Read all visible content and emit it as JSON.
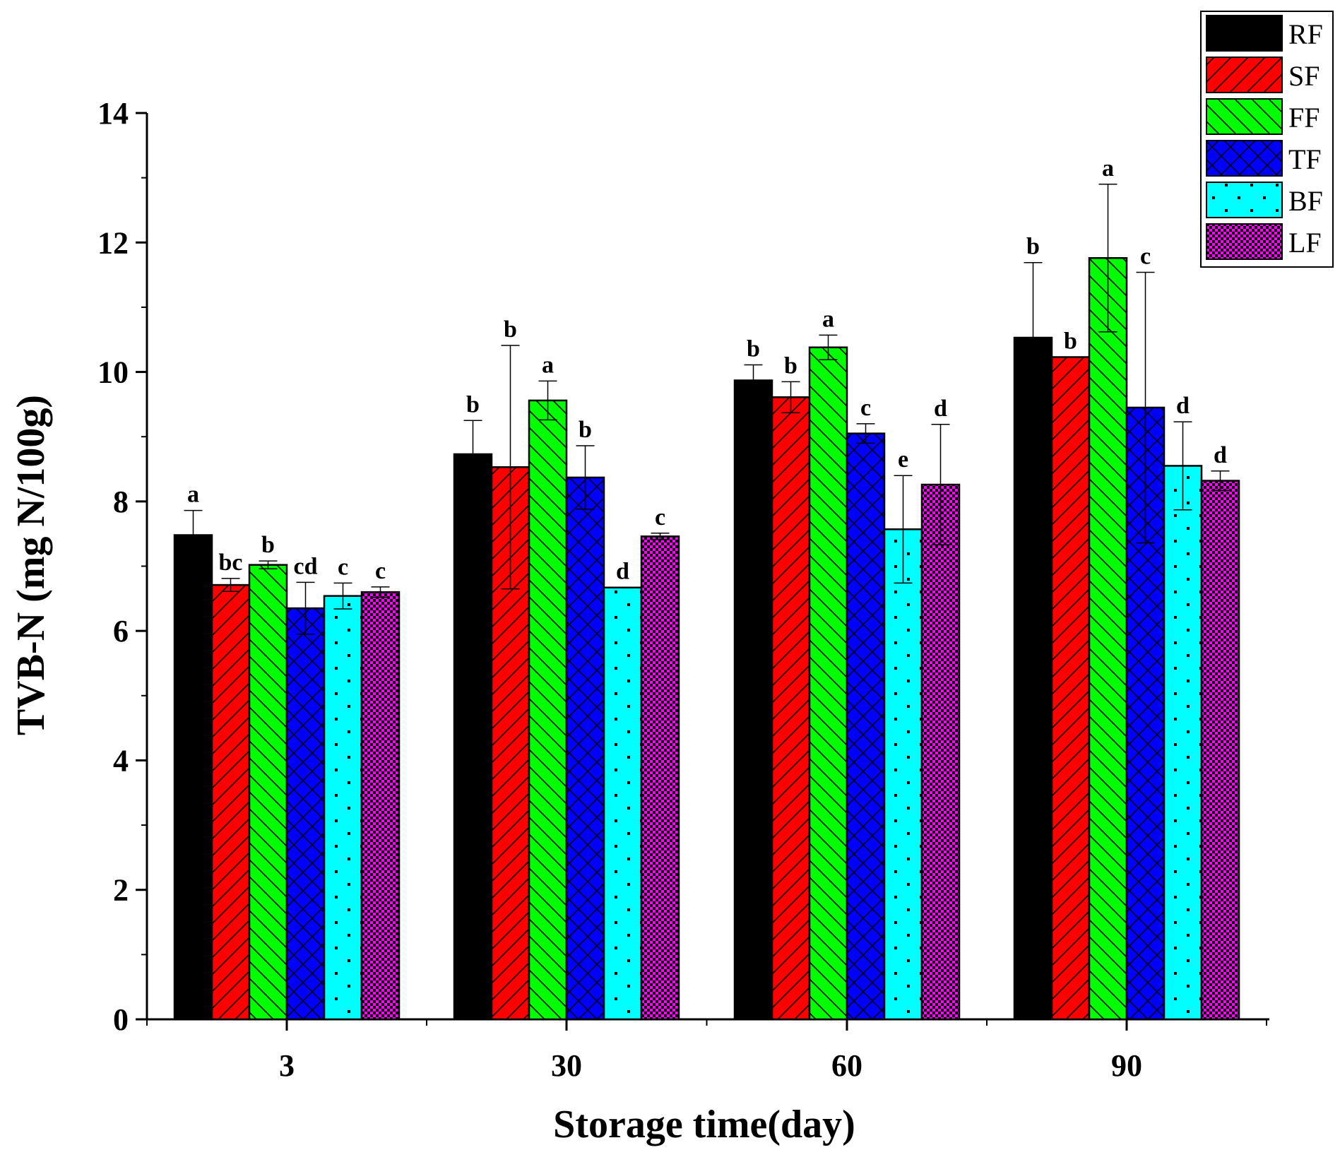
{
  "chart_data": {
    "type": "bar",
    "xlabel": "Storage time(day)",
    "ylabel": "TVB-N (mg N/100g)",
    "ylim": [
      0,
      14
    ],
    "yticks": [
      0,
      2,
      4,
      6,
      8,
      10,
      12,
      14
    ],
    "categories": [
      "3",
      "30",
      "60",
      "90"
    ],
    "legend_position": "top-right",
    "series": [
      {
        "name": "RF",
        "color": "#000000",
        "pattern": "solid",
        "values": [
          7.48,
          8.73,
          9.87,
          10.53
        ],
        "errors": [
          0.38,
          0.52,
          0.24,
          1.16
        ],
        "labels": [
          "a",
          "b",
          "b",
          "b"
        ]
      },
      {
        "name": "SF",
        "color": "#ff0000",
        "pattern": "forward-diagonal",
        "values": [
          6.71,
          8.53,
          9.61,
          10.23
        ],
        "errors": [
          0.1,
          1.88,
          0.24,
          0
        ],
        "labels": [
          "bc",
          "b",
          "b",
          "b"
        ]
      },
      {
        "name": "FF",
        "color": "#00ff00",
        "pattern": "back-diagonal",
        "values": [
          7.02,
          9.56,
          10.38,
          11.76
        ],
        "errors": [
          0.06,
          0.3,
          0.19,
          1.14
        ],
        "labels": [
          "b",
          "a",
          "a",
          "a"
        ]
      },
      {
        "name": "TF",
        "color": "#0000ff",
        "pattern": "crosshatch",
        "values": [
          6.35,
          8.37,
          9.05,
          9.45
        ],
        "errors": [
          0.4,
          0.49,
          0.15,
          2.09
        ],
        "labels": [
          "cd",
          "b",
          "c",
          "c"
        ]
      },
      {
        "name": "BF",
        "color": "#00ffff",
        "pattern": "dots",
        "values": [
          6.54,
          6.67,
          7.57,
          8.55
        ],
        "errors": [
          0.2,
          0,
          0.83,
          0.68
        ],
        "labels": [
          "c",
          "d",
          "e",
          "d"
        ]
      },
      {
        "name": "LF",
        "color": "#ff00ff",
        "pattern": "checker",
        "values": [
          6.6,
          7.46,
          8.26,
          8.32
        ],
        "errors": [
          0.08,
          0.05,
          0.93,
          0.15
        ],
        "labels": [
          "c",
          "c",
          "d",
          "d"
        ]
      }
    ]
  }
}
